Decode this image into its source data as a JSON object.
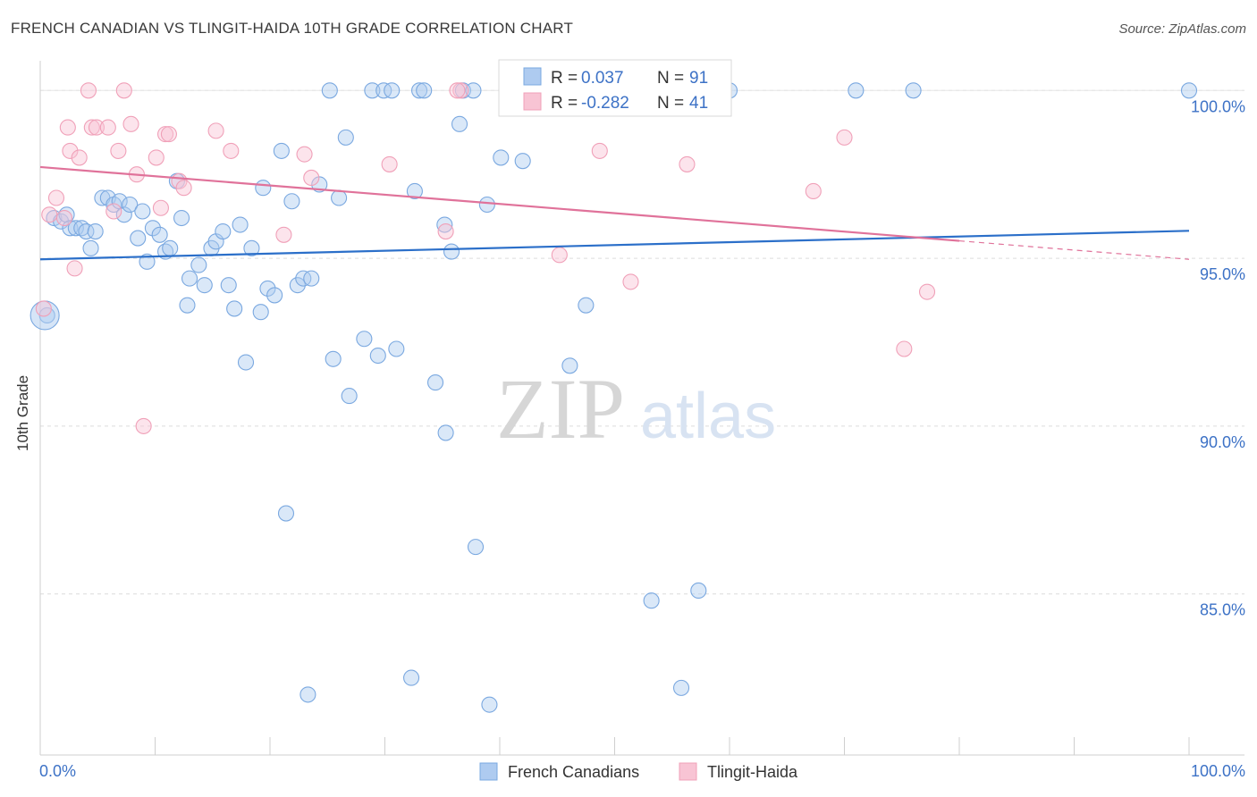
{
  "title": "FRENCH CANADIAN VS TLINGIT-HAIDA 10TH GRADE CORRELATION CHART",
  "source": "Source: ZipAtlas.com",
  "watermark": {
    "zip": "ZIP",
    "atlas": "atlas"
  },
  "chart_data": {
    "type": "scatter",
    "ylabel": "10th Grade",
    "xlim": [
      0,
      100
    ],
    "ylim": [
      80.2,
      100.7
    ],
    "x_tick_labels": [
      "0.0%",
      "100.0%"
    ],
    "y_ticks": [
      85,
      90,
      95,
      100
    ],
    "y_tick_labels": [
      "85.0%",
      "90.0%",
      "95.0%",
      "100.0%"
    ],
    "grid": true,
    "legend_position": "top-center",
    "stats": [
      {
        "r_label": "R =",
        "r_value": "0.037",
        "n_label": "N =",
        "n_value": "91"
      },
      {
        "r_label": "R =",
        "r_value": "-0.282",
        "n_label": "N =",
        "n_value": "41"
      }
    ],
    "series": [
      {
        "name": "French Canadians",
        "color": "#7aa8e0",
        "fill": "#aecbf0",
        "line_color": "#2b6fc9",
        "trend": {
          "x": [
            0,
            100
          ],
          "y": [
            94.97,
            95.82
          ]
        },
        "points": [
          [
            0.6,
            93.3
          ],
          [
            1.2,
            96.2
          ],
          [
            1.8,
            96.1
          ],
          [
            2.3,
            96.3
          ],
          [
            2.6,
            95.9
          ],
          [
            3.1,
            95.9
          ],
          [
            3.6,
            95.9
          ],
          [
            4,
            95.8
          ],
          [
            4.4,
            95.3
          ],
          [
            4.8,
            95.8
          ],
          [
            5.4,
            96.8
          ],
          [
            5.9,
            96.8
          ],
          [
            6.4,
            96.6
          ],
          [
            6.9,
            96.7
          ],
          [
            7.3,
            96.3
          ],
          [
            7.8,
            96.6
          ],
          [
            8.5,
            95.6
          ],
          [
            8.9,
            96.4
          ],
          [
            9.3,
            94.9
          ],
          [
            9.8,
            95.9
          ],
          [
            10.4,
            95.7
          ],
          [
            10.9,
            95.2
          ],
          [
            11.3,
            95.3
          ],
          [
            11.9,
            97.3
          ],
          [
            12.3,
            96.2
          ],
          [
            12.8,
            93.6
          ],
          [
            13,
            94.4
          ],
          [
            13.8,
            94.8
          ],
          [
            14.3,
            94.2
          ],
          [
            14.9,
            95.3
          ],
          [
            15.3,
            95.5
          ],
          [
            15.9,
            95.8
          ],
          [
            16.4,
            94.2
          ],
          [
            16.9,
            93.5
          ],
          [
            17.4,
            96.0
          ],
          [
            17.9,
            91.9
          ],
          [
            18.4,
            95.3
          ],
          [
            19.2,
            93.4
          ],
          [
            19.4,
            97.1
          ],
          [
            19.8,
            94.1
          ],
          [
            20.4,
            93.9
          ],
          [
            21,
            98.2
          ],
          [
            21.4,
            87.4
          ],
          [
            21.9,
            96.7
          ],
          [
            22.4,
            94.2
          ],
          [
            22.9,
            94.4
          ],
          [
            23.3,
            82.0
          ],
          [
            23.6,
            94.4
          ],
          [
            24.3,
            97.2
          ],
          [
            25.2,
            100.0
          ],
          [
            25.5,
            92.0
          ],
          [
            26,
            96.8
          ],
          [
            26.6,
            98.6
          ],
          [
            26.9,
            90.9
          ],
          [
            28.2,
            92.6
          ],
          [
            28.9,
            100.0
          ],
          [
            29.4,
            92.1
          ],
          [
            29.9,
            100.0
          ],
          [
            30.6,
            100.0
          ],
          [
            31,
            92.3
          ],
          [
            32.3,
            82.5
          ],
          [
            32.6,
            97.0
          ],
          [
            33,
            100.0
          ],
          [
            33.4,
            100.0
          ],
          [
            34.4,
            91.3
          ],
          [
            35.2,
            96.0
          ],
          [
            35.3,
            89.8
          ],
          [
            35.8,
            95.2
          ],
          [
            36.5,
            99.0
          ],
          [
            36.8,
            100.0
          ],
          [
            37.7,
            100.0
          ],
          [
            37.9,
            86.4
          ],
          [
            38.9,
            96.6
          ],
          [
            39.1,
            81.7
          ],
          [
            40.1,
            98.0
          ],
          [
            42.0,
            97.9
          ],
          [
            46.1,
            91.8
          ],
          [
            47.5,
            93.6
          ],
          [
            47.9,
            100.0
          ],
          [
            53.2,
            84.8
          ],
          [
            55.8,
            82.2
          ],
          [
            57.3,
            85.1
          ],
          [
            60.0,
            100.0
          ],
          [
            71.0,
            100.0
          ],
          [
            76.0,
            100.0
          ],
          [
            100.0,
            100.0
          ],
          [
            51.2,
            100.0
          ],
          [
            52.1,
            100.0
          ],
          [
            49.4,
            100.0
          ],
          [
            43.2,
            100.0
          ],
          [
            44.9,
            100.0
          ]
        ]
      },
      {
        "name": "Tlingit-Haida",
        "color": "#f0a0b8",
        "fill": "#f8c4d4",
        "line_color": "#e0729a",
        "trend": {
          "x": [
            0,
            80
          ],
          "y": [
            97.72,
            95.52
          ]
        },
        "trend_dash": {
          "x": [
            80,
            100
          ],
          "y": [
            95.52,
            94.97
          ]
        },
        "points": [
          [
            0.3,
            93.5
          ],
          [
            0.8,
            96.3
          ],
          [
            1.4,
            96.8
          ],
          [
            2.1,
            96.2
          ],
          [
            2.4,
            98.9
          ],
          [
            2.6,
            98.2
          ],
          [
            3,
            94.7
          ],
          [
            3.4,
            98.0
          ],
          [
            4.2,
            100.0
          ],
          [
            4.5,
            98.9
          ],
          [
            4.9,
            98.9
          ],
          [
            5.9,
            98.9
          ],
          [
            6.4,
            96.4
          ],
          [
            6.8,
            98.2
          ],
          [
            7.3,
            100.0
          ],
          [
            7.9,
            99.0
          ],
          [
            8.4,
            97.5
          ],
          [
            9.0,
            90.0
          ],
          [
            10.1,
            98.0
          ],
          [
            10.5,
            96.5
          ],
          [
            10.9,
            98.7
          ],
          [
            11.2,
            98.7
          ],
          [
            12.1,
            97.3
          ],
          [
            12.5,
            97.1
          ],
          [
            15.3,
            98.8
          ],
          [
            16.6,
            98.2
          ],
          [
            21.2,
            95.7
          ],
          [
            23.0,
            98.1
          ],
          [
            23.6,
            97.4
          ],
          [
            30.4,
            97.8
          ],
          [
            35.3,
            95.8
          ],
          [
            36.6,
            100.0
          ],
          [
            45.2,
            95.1
          ],
          [
            48.7,
            98.2
          ],
          [
            51.4,
            94.3
          ],
          [
            56.3,
            97.8
          ],
          [
            67.3,
            97.0
          ],
          [
            70.0,
            98.6
          ],
          [
            75.2,
            92.3
          ],
          [
            77.2,
            94.0
          ],
          [
            36.3,
            100.0
          ]
        ]
      }
    ],
    "legend": [
      "French Canadians",
      "Tlingit-Haida"
    ]
  }
}
